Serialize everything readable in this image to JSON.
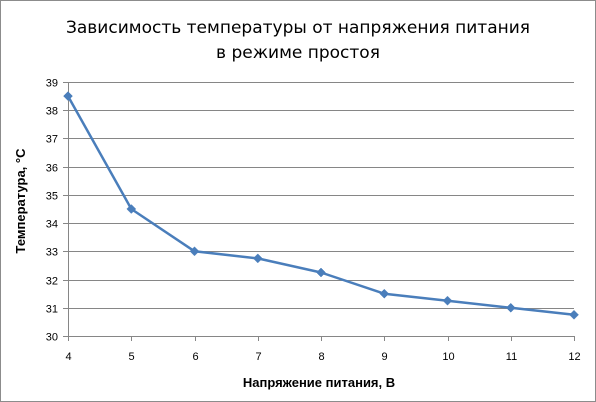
{
  "chart_data": {
    "type": "line",
    "title_line1": "Зависимость температуры  от напряжения  питания",
    "title_line2": "в режиме  простоя",
    "xlabel": "Напряжение питания, В",
    "ylabel": "Температура, °С",
    "x": [
      4,
      5,
      6,
      7,
      8,
      9,
      10,
      11,
      12
    ],
    "series": [
      {
        "values": [
          38.5,
          34.5,
          33.0,
          32.75,
          32.25,
          31.5,
          31.25,
          31.0,
          30.75
        ],
        "color": "#4a7ebb"
      }
    ],
    "xlim": [
      4,
      12
    ],
    "ylim": [
      30,
      39
    ],
    "xticks": [
      4,
      5,
      6,
      7,
      8,
      9,
      10,
      11,
      12
    ],
    "yticks": [
      30,
      31,
      32,
      33,
      34,
      35,
      36,
      37,
      38,
      39
    ],
    "grid": "horizontal",
    "legend": "none",
    "marker": "diamond",
    "gridline_color": "#868686",
    "axis_color": "#868686"
  }
}
